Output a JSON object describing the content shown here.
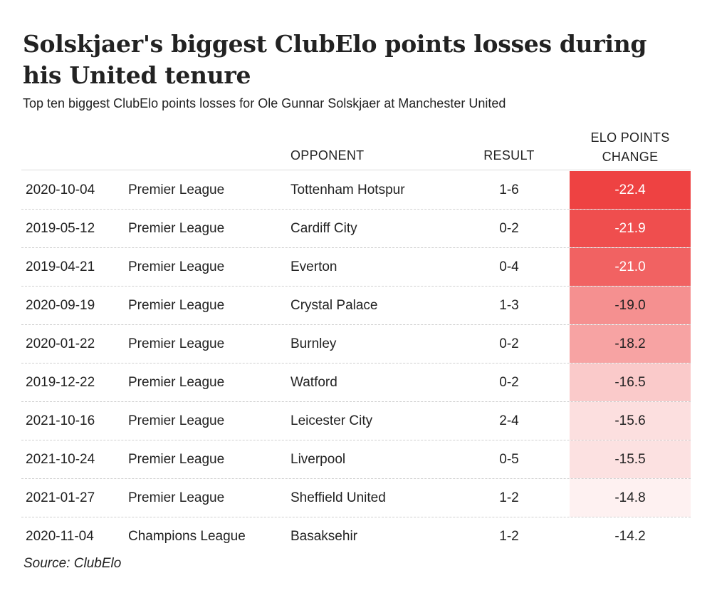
{
  "title": "Solskjaer's biggest ClubElo points losses during his United tenure",
  "subtitle": "Top ten biggest ClubElo points losses for Ole Gunnar Solskjaer at Manchester United",
  "source": "Source: ClubElo",
  "colors": {
    "scale_high": "#ee4242",
    "scale_low": "#ffffff",
    "text": "#222222"
  },
  "chart_data": {
    "type": "table",
    "title": "Solskjaer's biggest ClubElo points losses during his United tenure",
    "subtitle": "Top ten biggest ClubElo points losses for Ole Gunnar Solskjaer at Manchester United",
    "columns": [
      "",
      "",
      "OPPONENT",
      "RESULT",
      "ELO POINTS CHANGE"
    ],
    "rows": [
      {
        "date": "2020-10-04",
        "competition": "Premier League",
        "opponent": "Tottenham Hotspur",
        "result": "1-6",
        "elo_change": -22.4,
        "elo_label": "-22.4"
      },
      {
        "date": "2019-05-12",
        "competition": "Premier League",
        "opponent": "Cardiff City",
        "result": "0-2",
        "elo_change": -21.9,
        "elo_label": "-21.9"
      },
      {
        "date": "2019-04-21",
        "competition": "Premier League",
        "opponent": "Everton",
        "result": "0-4",
        "elo_change": -21.0,
        "elo_label": "-21.0"
      },
      {
        "date": "2020-09-19",
        "competition": "Premier League",
        "opponent": "Crystal Palace",
        "result": "1-3",
        "elo_change": -19.0,
        "elo_label": "-19.0"
      },
      {
        "date": "2020-01-22",
        "competition": "Premier League",
        "opponent": "Burnley",
        "result": "0-2",
        "elo_change": -18.2,
        "elo_label": "-18.2"
      },
      {
        "date": "2019-12-22",
        "competition": "Premier League",
        "opponent": "Watford",
        "result": "0-2",
        "elo_change": -16.5,
        "elo_label": "-16.5"
      },
      {
        "date": "2021-10-16",
        "competition": "Premier League",
        "opponent": "Leicester City",
        "result": "2-4",
        "elo_change": -15.6,
        "elo_label": "-15.6"
      },
      {
        "date": "2021-10-24",
        "competition": "Premier League",
        "opponent": "Liverpool",
        "result": "0-5",
        "elo_change": -15.5,
        "elo_label": "-15.5"
      },
      {
        "date": "2021-01-27",
        "competition": "Premier League",
        "opponent": "Sheffield United",
        "result": "1-2",
        "elo_change": -14.8,
        "elo_label": "-14.8"
      },
      {
        "date": "2020-11-04",
        "competition": "Champions League",
        "opponent": "Basaksehir",
        "result": "1-2",
        "elo_change": -14.2,
        "elo_label": "-14.2"
      }
    ]
  }
}
